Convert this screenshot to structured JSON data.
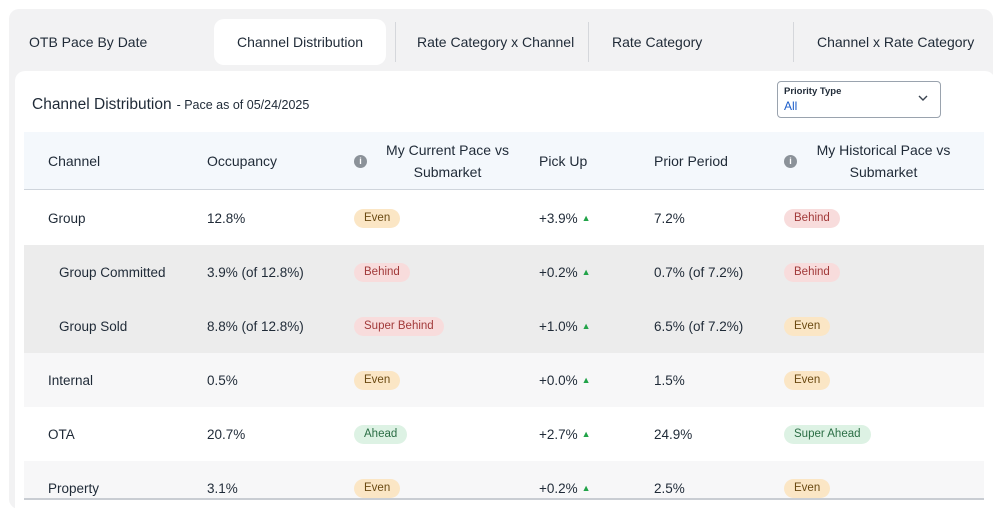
{
  "tabs": [
    {
      "label": "OTB Pace By Date",
      "active": false
    },
    {
      "label": "Channel Distribution",
      "active": true
    },
    {
      "label": "Rate Category x Channel",
      "active": false
    },
    {
      "label": "Rate Category",
      "active": false
    },
    {
      "label": "Channel x Rate Category",
      "active": false
    }
  ],
  "card": {
    "title": "Channel Distribution",
    "subtitle": "- Pace as of 05/24/2025"
  },
  "priority": {
    "label": "Priority Type",
    "value": "All",
    "icon": "chevron-down-icon"
  },
  "table": {
    "headers": {
      "channel": "Channel",
      "occupancy": "Occupancy",
      "current_pace": "My Current Pace vs Submarket",
      "pickup": "Pick Up",
      "prior": "Prior Period",
      "historical_pace": "My Historical Pace vs Submarket"
    },
    "info_icon": "info-icon",
    "rows": [
      {
        "channel": "Group",
        "occupancy": "12.8%",
        "current": "Even",
        "pickup": "+3.9%",
        "prior": "7.2%",
        "historical": "Behind"
      },
      {
        "channel": "Group Committed",
        "occupancy": "3.9% (of 12.8%)",
        "current": "Behind",
        "pickup": "+0.2%",
        "prior": "0.7% (of 7.2%)",
        "historical": "Behind"
      },
      {
        "channel": "Group Sold",
        "occupancy": "8.8% (of 12.8%)",
        "current": "Super Behind",
        "pickup": "+1.0%",
        "prior": "6.5% (of 7.2%)",
        "historical": "Even"
      },
      {
        "channel": "Internal",
        "occupancy": "0.5%",
        "current": "Even",
        "pickup": "+0.0%",
        "prior": "1.5%",
        "historical": "Even"
      },
      {
        "channel": "OTA",
        "occupancy": "20.7%",
        "current": "Ahead",
        "pickup": "+2.7%",
        "prior": "24.9%",
        "historical": "Super Ahead"
      },
      {
        "channel": "Property",
        "occupancy": "3.1%",
        "current": "Even",
        "pickup": "+0.2%",
        "prior": "2.5%",
        "historical": "Even"
      }
    ]
  },
  "colors": {
    "even": "#fbe6c5",
    "behind": "#f8dcdc",
    "ahead": "#ddf2e4",
    "pickup_up": "#21a348",
    "link_blue": "#1a5cc9"
  }
}
